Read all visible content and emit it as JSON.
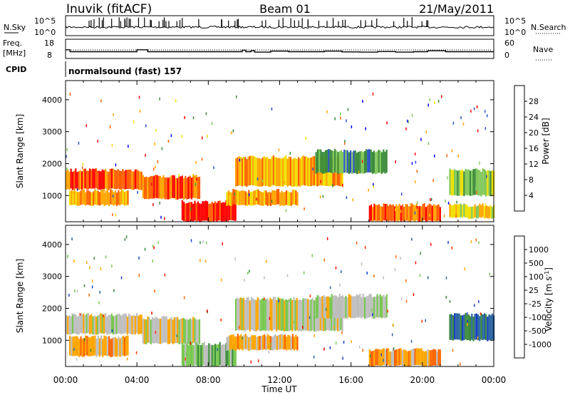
{
  "header": {
    "station": "Inuvik (fitACF)",
    "beam": "Beam 01",
    "date": "21/May/2011"
  },
  "colors": {
    "ink": "#000000",
    "ground_scatter": "#bebebe"
  },
  "chart_data": [
    {
      "type": "line",
      "name": "noise-panel",
      "left_label": "N.Sky",
      "right_label": "N.Search",
      "left_ticks": [
        "10^5",
        "10^0"
      ],
      "right_ticks": [
        "10^5",
        "10^0"
      ]
    },
    {
      "type": "line",
      "name": "frequency-panel",
      "left_label_1": "Freq.",
      "left_label_2": "[MHz]",
      "right_label": "Nave",
      "left_ticks": [
        18,
        8
      ],
      "right_ticks": [
        60,
        0
      ],
      "freq_steps": [
        [
          0,
          12.5
        ],
        [
          0.25,
          11.5
        ],
        [
          4,
          12.5
        ],
        [
          4.6,
          11.5
        ],
        [
          9.9,
          12.3
        ],
        [
          10.1,
          11.5
        ],
        [
          10.4,
          12.0
        ],
        [
          10.6,
          11.3
        ],
        [
          11.5,
          11.8
        ],
        [
          12.5,
          11.5
        ],
        [
          14.5,
          11.8
        ],
        [
          15.5,
          11.4
        ],
        [
          16.5,
          11.3
        ],
        [
          17.5,
          11.6
        ],
        [
          18.5,
          11.3
        ],
        [
          19.5,
          11.5
        ],
        [
          20.3,
          12.0
        ],
        [
          21.3,
          11.5
        ],
        [
          24,
          11.5
        ]
      ]
    },
    {
      "type": "heatmap",
      "name": "power-panel",
      "cpid_label": "CPID",
      "cpid_text": "normalsound (fast) 157",
      "ylabel": "Slant Range [km]",
      "yticks": [
        1000,
        2000,
        3000,
        4000
      ],
      "ylim": [
        180,
        4600
      ],
      "xlim": [
        0,
        24
      ],
      "colorbar_label": "Power [dB]",
      "colorbar_ticks": [
        "4",
        "8",
        "12",
        "16",
        "20",
        "24",
        "28"
      ],
      "colorbar_colors": [
        "#0000ff",
        "#2a50c8",
        "#3c8c3c",
        "#82c85a",
        "#f0e000",
        "#ffa500",
        "#ff6000",
        "#ff0000"
      ],
      "bands": [
        {
          "t0": 0,
          "t1": 4.3,
          "r0": 1200,
          "r1": 1800,
          "level": 6
        },
        {
          "t0": 0.2,
          "t1": 3.5,
          "r0": 700,
          "r1": 1150,
          "level": 5
        },
        {
          "t0": 4.3,
          "t1": 7.5,
          "r0": 900,
          "r1": 1600,
          "level": 6
        },
        {
          "t0": 6.5,
          "t1": 9.5,
          "r0": 200,
          "r1": 800,
          "level": 7
        },
        {
          "t0": 9.5,
          "t1": 15.5,
          "r0": 1300,
          "r1": 2200,
          "level": 5
        },
        {
          "t0": 9,
          "t1": 13,
          "r0": 700,
          "r1": 1150,
          "level": 5
        },
        {
          "t0": 17,
          "t1": 21,
          "r0": 200,
          "r1": 700,
          "level": 6
        },
        {
          "t0": 21.5,
          "t1": 24,
          "r0": 300,
          "r1": 700,
          "level": 4
        },
        {
          "t0": 21.5,
          "t1": 24,
          "r0": 1000,
          "r1": 1800,
          "level": 3
        },
        {
          "t0": 14,
          "t1": 18,
          "r0": 1700,
          "r1": 2400,
          "level": 2
        }
      ]
    },
    {
      "type": "heatmap",
      "name": "velocity-panel",
      "ylabel": "Slant Range [km]",
      "yticks": [
        1000,
        2000,
        3000,
        4000
      ],
      "ylim": [
        180,
        4600
      ],
      "xlim": [
        0,
        24
      ],
      "xticks": [
        "00:00",
        "04:00",
        "08:00",
        "12:00",
        "16:00",
        "20:00",
        "00:00"
      ],
      "xlabel": "Time UT",
      "colorbar_label": "Velocity [m s^-1]",
      "colorbar_ticks": [
        "1000",
        "500",
        "100",
        "25",
        "-25",
        "-100",
        "-500",
        "-1000"
      ],
      "colorbar_colors": [
        "#1a3cc8",
        "#2a64a0",
        "#3c8c3c",
        "#78c850",
        "#bebebe",
        "#ffa500",
        "#ff6400",
        "#ff2800",
        "#ff0000"
      ],
      "bands": [
        {
          "t0": 0,
          "t1": 4.3,
          "r0": 1200,
          "r1": 1800,
          "level": 4
        },
        {
          "t0": 0.2,
          "t1": 3.5,
          "r0": 500,
          "r1": 1100,
          "level": 5
        },
        {
          "t0": 4.3,
          "t1": 7.5,
          "r0": 900,
          "r1": 1700,
          "level": 4
        },
        {
          "t0": 6.5,
          "t1": 9.5,
          "r0": 200,
          "r1": 900,
          "level": 3
        },
        {
          "t0": 9.5,
          "t1": 15.5,
          "r0": 1300,
          "r1": 2300,
          "level": 4
        },
        {
          "t0": 9,
          "t1": 13,
          "r0": 700,
          "r1": 1150,
          "level": 5
        },
        {
          "t0": 17,
          "t1": 21,
          "r0": 200,
          "r1": 700,
          "level": 5
        },
        {
          "t0": 21.5,
          "t1": 24,
          "r0": 1000,
          "r1": 1800,
          "level": 1
        },
        {
          "t0": 14,
          "t1": 18,
          "r0": 1700,
          "r1": 2400,
          "level": 4
        }
      ]
    }
  ]
}
